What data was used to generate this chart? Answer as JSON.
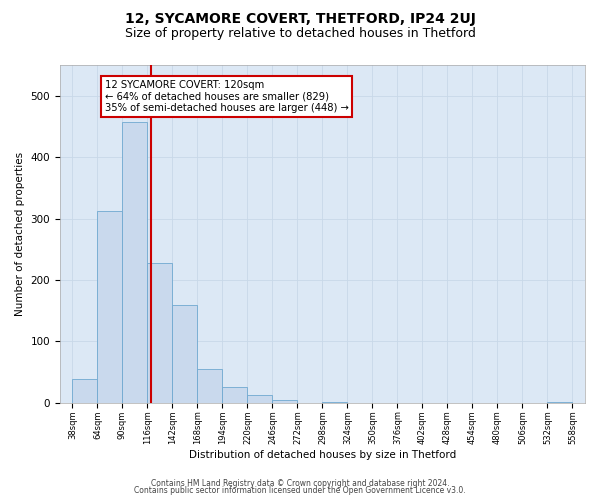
{
  "title": "12, SYCAMORE COVERT, THETFORD, IP24 2UJ",
  "subtitle": "Size of property relative to detached houses in Thetford",
  "xlabel": "Distribution of detached houses by size in Thetford",
  "ylabel": "Number of detached properties",
  "bar_edges": [
    38,
    64,
    90,
    116,
    142,
    168,
    194,
    220,
    246,
    272,
    298,
    324,
    350,
    376,
    402,
    428,
    454,
    480,
    506,
    532,
    558
  ],
  "bar_heights": [
    38,
    312,
    458,
    228,
    160,
    55,
    26,
    13,
    4,
    0,
    2,
    0,
    0,
    0,
    0,
    0,
    0,
    0,
    0,
    2
  ],
  "bar_color": "#c9d9ed",
  "bar_edge_color": "#6fa8d0",
  "reference_line_x": 120,
  "reference_line_color": "#cc0000",
  "annotation_text": "12 SYCAMORE COVERT: 120sqm\n← 64% of detached houses are smaller (829)\n35% of semi-detached houses are larger (448) →",
  "annotation_box_color": "#ffffff",
  "annotation_box_edge_color": "#cc0000",
  "ylim": [
    0,
    550
  ],
  "tick_labels": [
    "38sqm",
    "64sqm",
    "90sqm",
    "116sqm",
    "142sqm",
    "168sqm",
    "194sqm",
    "220sqm",
    "246sqm",
    "272sqm",
    "298sqm",
    "324sqm",
    "350sqm",
    "376sqm",
    "402sqm",
    "428sqm",
    "454sqm",
    "480sqm",
    "506sqm",
    "532sqm",
    "558sqm"
  ],
  "footer1": "Contains HM Land Registry data © Crown copyright and database right 2024.",
  "footer2": "Contains public sector information licensed under the Open Government Licence v3.0.",
  "bg_color": "#ffffff",
  "grid_color": "#c8d8e8",
  "axes_bg_color": "#dce8f5",
  "title_fontsize": 10,
  "subtitle_fontsize": 9
}
